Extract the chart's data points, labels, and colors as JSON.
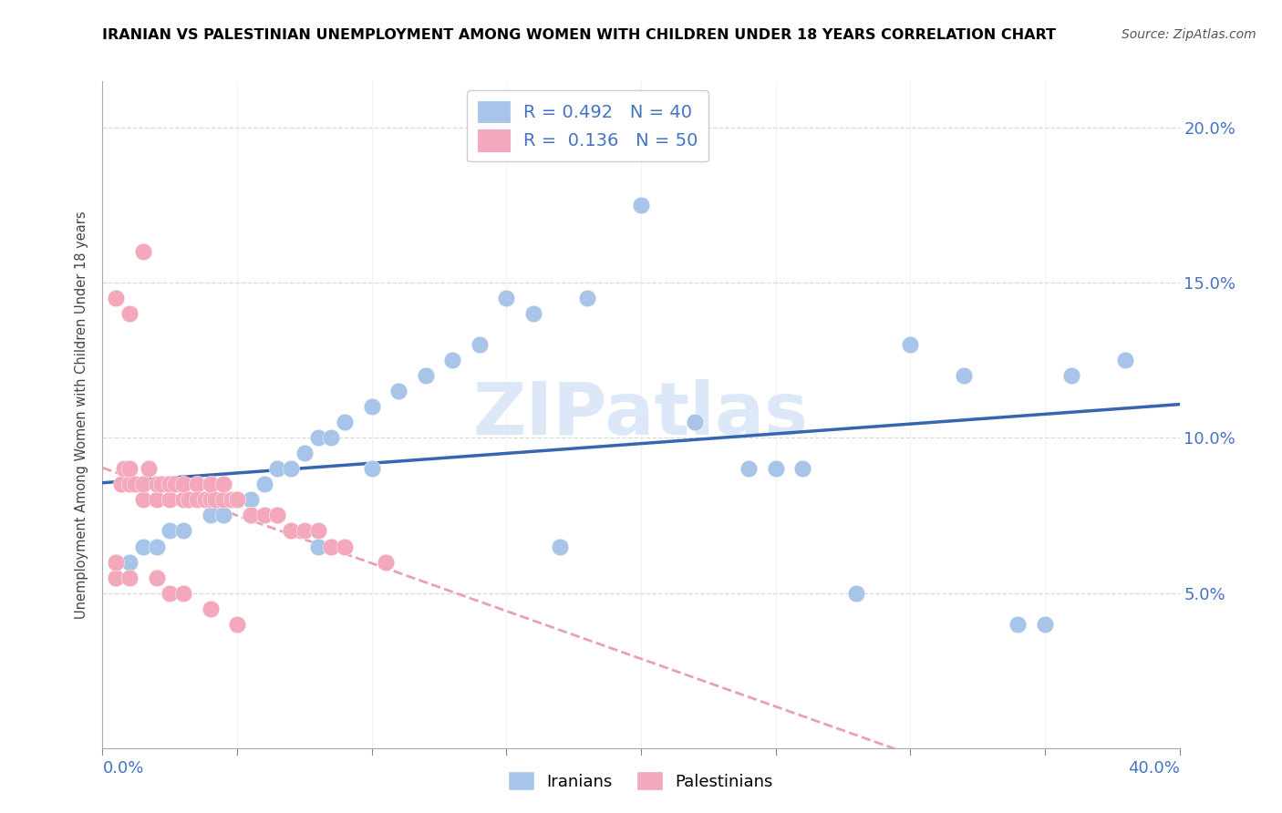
{
  "title": "IRANIAN VS PALESTINIAN UNEMPLOYMENT AMONG WOMEN WITH CHILDREN UNDER 18 YEARS CORRELATION CHART",
  "source": "Source: ZipAtlas.com",
  "ylabel_label": "Unemployment Among Women with Children Under 18 years",
  "xlim": [
    0.0,
    0.4
  ],
  "ylim": [
    0.0,
    0.215
  ],
  "iranian_R": "0.492",
  "iranian_N": "40",
  "palestinian_R": "0.136",
  "palestinian_N": "50",
  "iranian_color": "#a8c4e8",
  "palestinian_color": "#f4a8bc",
  "iranian_line_color": "#3865b0",
  "palestinian_line_color": "#e8a0b4",
  "watermark": "ZIPatlas",
  "watermark_color": "#dce8f8",
  "legend_iranian_label": "Iranians",
  "legend_palestinian_label": "Palestinians",
  "grid_color": "#d8d8d8",
  "iranians_x": [
    0.005,
    0.01,
    0.015,
    0.02,
    0.025,
    0.03,
    0.04,
    0.045,
    0.05,
    0.055,
    0.06,
    0.065,
    0.07,
    0.075,
    0.08,
    0.085,
    0.09,
    0.1,
    0.11,
    0.12,
    0.13,
    0.14,
    0.16,
    0.18,
    0.2,
    0.22,
    0.24,
    0.26,
    0.28,
    0.3,
    0.32,
    0.34,
    0.36,
    0.38,
    0.1,
    0.15,
    0.25,
    0.17,
    0.08,
    0.35
  ],
  "iranians_y": [
    0.055,
    0.06,
    0.065,
    0.065,
    0.07,
    0.07,
    0.075,
    0.075,
    0.08,
    0.08,
    0.085,
    0.09,
    0.09,
    0.095,
    0.1,
    0.1,
    0.105,
    0.11,
    0.115,
    0.12,
    0.125,
    0.13,
    0.14,
    0.145,
    0.175,
    0.105,
    0.09,
    0.09,
    0.05,
    0.13,
    0.12,
    0.04,
    0.12,
    0.125,
    0.09,
    0.145,
    0.09,
    0.065,
    0.065,
    0.04
  ],
  "palestinians_x": [
    0.005,
    0.005,
    0.007,
    0.008,
    0.01,
    0.01,
    0.012,
    0.015,
    0.015,
    0.017,
    0.02,
    0.02,
    0.022,
    0.025,
    0.025,
    0.027,
    0.03,
    0.03,
    0.032,
    0.035,
    0.035,
    0.038,
    0.04,
    0.04,
    0.042,
    0.045,
    0.045,
    0.048,
    0.05,
    0.05,
    0.055,
    0.055,
    0.06,
    0.065,
    0.065,
    0.07,
    0.075,
    0.08,
    0.085,
    0.09,
    0.01,
    0.02,
    0.025,
    0.03,
    0.04,
    0.05,
    0.01,
    0.005,
    0.015,
    0.105
  ],
  "palestinians_y": [
    0.055,
    0.06,
    0.085,
    0.09,
    0.085,
    0.09,
    0.085,
    0.08,
    0.085,
    0.09,
    0.08,
    0.085,
    0.085,
    0.08,
    0.085,
    0.085,
    0.08,
    0.085,
    0.08,
    0.085,
    0.08,
    0.08,
    0.08,
    0.085,
    0.08,
    0.08,
    0.085,
    0.08,
    0.08,
    0.08,
    0.075,
    0.075,
    0.075,
    0.075,
    0.075,
    0.07,
    0.07,
    0.07,
    0.065,
    0.065,
    0.055,
    0.055,
    0.05,
    0.05,
    0.045,
    0.04,
    0.14,
    0.145,
    0.16,
    0.06
  ]
}
